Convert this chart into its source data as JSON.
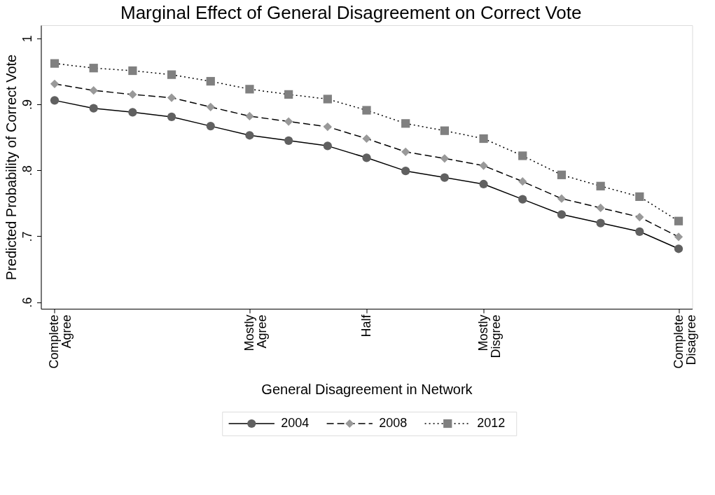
{
  "chart_data": {
    "type": "line",
    "title": "Marginal Effect of General Disagreement on Correct Vote",
    "xlabel": "General Disagreement in Network",
    "ylabel": "Predicted Probability of Correct Vote",
    "categories": [
      "Complete Agree",
      null,
      null,
      null,
      null,
      "Mostly Agree",
      null,
      null,
      "Half",
      null,
      null,
      "Mostly Disgree",
      null,
      null,
      null,
      null,
      "Complete Disagree"
    ],
    "series": [
      {
        "name": "2004",
        "color": "#606060",
        "marker": "circle",
        "line_style": "solid",
        "values": [
          0.906,
          0.894,
          0.888,
          0.881,
          0.867,
          0.853,
          0.845,
          0.837,
          0.819,
          0.799,
          0.789,
          0.779,
          0.756,
          0.733,
          0.72,
          0.707,
          0.681
        ]
      },
      {
        "name": "2008",
        "color": "#999999",
        "marker": "diamond",
        "line_style": "dashed",
        "values": [
          0.931,
          0.921,
          0.915,
          0.91,
          0.896,
          0.882,
          0.874,
          0.866,
          0.848,
          0.828,
          0.818,
          0.807,
          0.783,
          0.757,
          0.743,
          0.729,
          0.699
        ]
      },
      {
        "name": "2012",
        "color": "#808080",
        "marker": "square",
        "line_style": "dotted",
        "values": [
          0.962,
          0.955,
          0.951,
          0.945,
          0.935,
          0.923,
          0.915,
          0.908,
          0.891,
          0.871,
          0.86,
          0.848,
          0.822,
          0.793,
          0.776,
          0.76,
          0.723
        ]
      }
    ],
    "ylim": [
      0.59,
      1.02
    ],
    "yticks": [
      {
        "value": 0.6,
        "label": ".6"
      },
      {
        "value": 0.7,
        "label": ".7"
      },
      {
        "value": 0.8,
        "label": ".8"
      },
      {
        "value": 0.9,
        "label": ".9"
      },
      1
    ],
    "grid": false,
    "legend": "bottom"
  }
}
